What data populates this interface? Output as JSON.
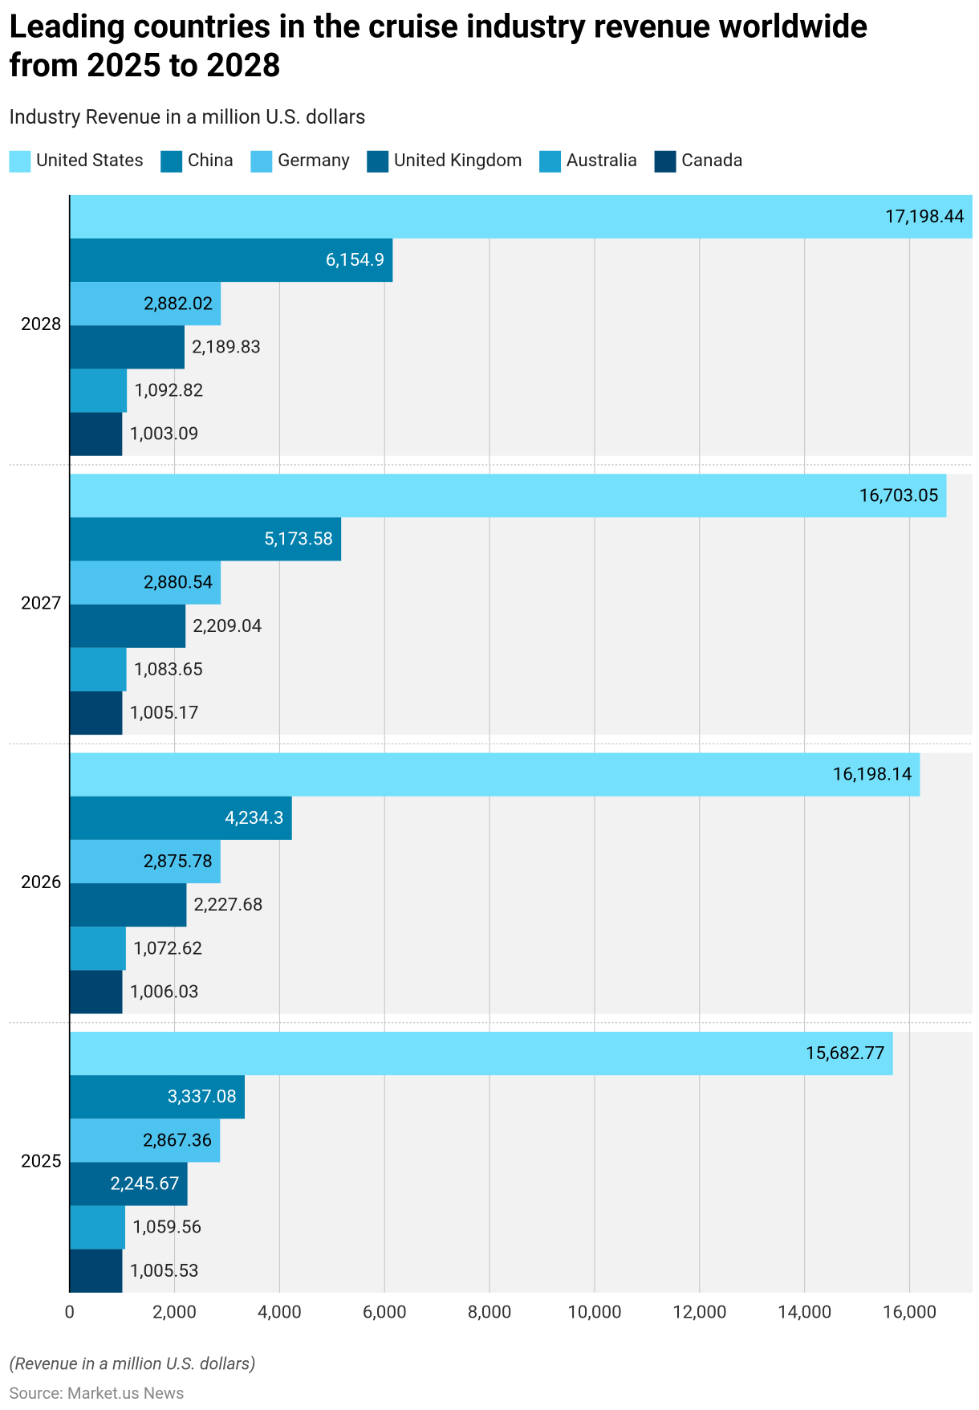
{
  "chart_data": {
    "type": "grouped-hbar",
    "title": [
      "Leading countries in the cruise industry revenue worldwide",
      "from 2025 to 2028"
    ],
    "subtitle": "Industry Revenue in a million U.S. dollars",
    "footnote": "(Revenue in a million U.S. dollars)",
    "source": "Source: Market.us News",
    "categories": [
      "2028",
      "2027",
      "2026",
      "2025"
    ],
    "series": [
      {
        "name": "United States",
        "color": "#74e0fc",
        "label_color": "#000",
        "values": [
          17198.44,
          16703.05,
          16198.14,
          15682.77
        ],
        "value_labels": [
          "17,198.44",
          "16,703.05",
          "16,198.14",
          "15,682.77"
        ]
      },
      {
        "name": "China",
        "color": "#0080ad",
        "label_color": "#fff",
        "values": [
          6154.9,
          5173.58,
          4234.3,
          3337.08
        ],
        "value_labels": [
          "6,154.9",
          "5,173.58",
          "4,234.3",
          "3,337.08"
        ]
      },
      {
        "name": "Germany",
        "color": "#4dc3ef",
        "label_color": "#000",
        "values": [
          2882.02,
          2880.54,
          2875.78,
          2867.36
        ],
        "value_labels": [
          "2,882.02",
          "2,880.54",
          "2,875.78",
          "2,867.36"
        ]
      },
      {
        "name": "United Kingdom",
        "color": "#006592",
        "label_color": "#fff",
        "values": [
          2189.83,
          2209.04,
          2227.68,
          2245.67
        ],
        "value_labels": [
          "2,189.83",
          "2,209.04",
          "2,227.68",
          "2,245.67"
        ]
      },
      {
        "name": "Australia",
        "color": "#1aa1d0",
        "label_color": "#000",
        "values": [
          1092.82,
          1083.65,
          1072.62,
          1059.56
        ],
        "value_labels": [
          "1,092.82",
          "1,083.65",
          "1,072.62",
          "1,059.56"
        ]
      },
      {
        "name": "Canada",
        "color": "#00456f",
        "label_color": "#000",
        "values": [
          1003.09,
          1005.17,
          1006.03,
          1005.53
        ],
        "value_labels": [
          "1,003.09",
          "1,005.17",
          "1,006.03",
          "1,005.53"
        ]
      }
    ],
    "xlim": [
      0,
      17200
    ],
    "xticks": [
      0,
      {
        "value": 2000,
        "label": "2,000"
      },
      {
        "value": 4000,
        "label": "4,000"
      },
      {
        "value": 6000,
        "label": "6,000"
      },
      {
        "value": 8000,
        "label": "8,000"
      },
      {
        "value": 10000,
        "label": "10,000"
      },
      {
        "value": 12000,
        "label": "12,000"
      },
      {
        "value": 14000,
        "label": "14,000"
      },
      {
        "value": 16000,
        "label": "16,000"
      }
    ],
    "grid": true
  }
}
